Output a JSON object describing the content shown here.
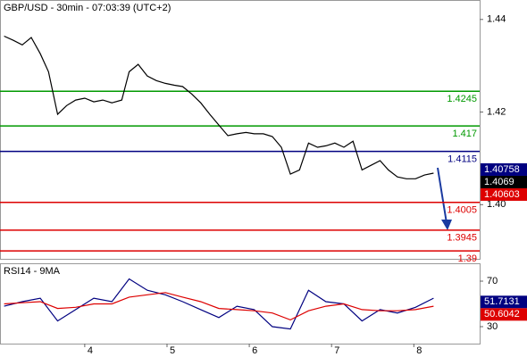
{
  "chart_data": [
    {
      "type": "line",
      "title": "GBP/USD - 30min - 07:03:39 (UTC+2)",
      "x": [
        3.02,
        3.13,
        3.24,
        3.35,
        3.46,
        3.56,
        3.67,
        3.78,
        3.89,
        4.0,
        4.11,
        4.22,
        4.33,
        4.45,
        4.54,
        4.65,
        4.76,
        4.87,
        4.98,
        5.09,
        5.19,
        5.3,
        5.41,
        5.52,
        5.63,
        5.74,
        5.85,
        5.96,
        6.06,
        6.17,
        6.28,
        6.39,
        6.5,
        6.61,
        6.72,
        6.83,
        6.93,
        7.04,
        7.15,
        7.26,
        7.37,
        7.48,
        7.59,
        7.69,
        7.8,
        7.91,
        8.02,
        8.13,
        8.24
      ],
      "series": [
        {
          "color": "#000000",
          "values": [
            1.4364,
            1.4355,
            1.4345,
            1.4361,
            1.4326,
            1.4287,
            1.4195,
            1.4214,
            1.4226,
            1.423,
            1.4222,
            1.4226,
            1.422,
            1.4226,
            1.4287,
            1.4303,
            1.4278,
            1.4268,
            1.4262,
            1.4258,
            1.4255,
            1.4239,
            1.422,
            1.4195,
            1.4172,
            1.4149,
            1.4153,
            1.4156,
            1.4153,
            1.4153,
            1.4147,
            1.4124,
            1.4066,
            1.4075,
            1.4133,
            1.4124,
            1.4127,
            1.4133,
            1.4124,
            1.4137,
            1.4075,
            1.4085,
            1.4095,
            1.4075,
            1.406,
            1.4056,
            1.4056,
            1.4064,
            1.4068
          ]
        }
      ],
      "xlim": [
        2.97,
        8.8
      ],
      "ylim": [
        1.3883,
        1.4442
      ],
      "yticks": [
        {
          "value": 1.4,
          "label": "1.40"
        },
        1.42,
        1.44
      ],
      "levels": [
        {
          "value": 1.4245,
          "color": "#009900"
        },
        {
          "value": 1.417,
          "color": "#009900"
        },
        {
          "value": 1.4115,
          "color": "#000080"
        },
        {
          "value": 1.4005,
          "color": "#dd0000"
        },
        {
          "value": 1.3945,
          "color": "#dd0000"
        },
        {
          "value": 1.39,
          "color": "#dd0000"
        }
      ],
      "price_labels": [
        {
          "value": 1.40758,
          "color": "#000080"
        },
        {
          "value": 1.4069,
          "color": "#000000"
        },
        {
          "value": 1.40603,
          "color": "#dd0000"
        }
      ]
    },
    {
      "type": "line",
      "title": "RSI14 - 9MA",
      "x": [
        3.02,
        3.24,
        3.46,
        3.67,
        3.89,
        4.11,
        4.33,
        4.54,
        4.76,
        4.98,
        5.19,
        5.41,
        5.63,
        5.85,
        6.06,
        6.28,
        6.5,
        6.72,
        6.93,
        7.15,
        7.37,
        7.59,
        7.8,
        8.02,
        8.24
      ],
      "series": [
        {
          "color": "#000080",
          "values": [
            48,
            52,
            55,
            35,
            45,
            55,
            52,
            72,
            62,
            58,
            52,
            45,
            38,
            48,
            45,
            30,
            28,
            62,
            52,
            50,
            35,
            45,
            42,
            47,
            55
          ]
        },
        {
          "color": "#dd0000",
          "values": [
            50,
            51,
            52,
            46,
            47,
            50,
            50,
            56,
            58,
            60,
            56,
            52,
            46,
            45,
            44,
            42,
            36,
            44,
            48,
            50,
            45,
            44,
            44,
            45,
            48
          ]
        }
      ],
      "xlim": [
        2.97,
        8.8
      ],
      "ylim": [
        15.1,
        85.7
      ],
      "yticks": [
        30,
        70
      ],
      "xticks": [
        4,
        5,
        6,
        7,
        8
      ],
      "price_labels": [
        {
          "value": 51.7131,
          "color": "#000080"
        },
        {
          "value": 50.6042,
          "color": "#dd0000"
        }
      ]
    }
  ]
}
